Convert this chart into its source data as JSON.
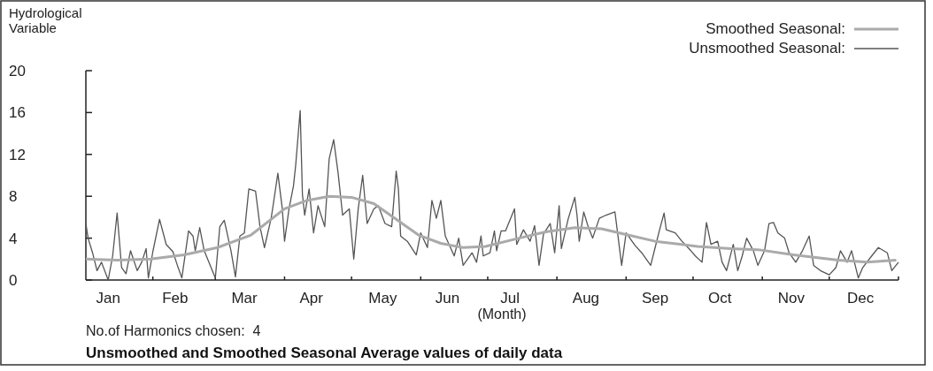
{
  "chart_data": {
    "type": "line",
    "title": "Unsmoothed and Smoothed Seasonal Average values of daily data",
    "xlabel": "(Month)",
    "ylabel": "Hydrological Variable",
    "annotations": [
      "No.of Harmonics chosen:  4"
    ],
    "legend": "top right",
    "xlim": [
      "--01-01",
      "--12-31"
    ],
    "ylim": [
      0,
      20
    ],
    "yticks": [
      0,
      4,
      8,
      12,
      16,
      20
    ],
    "xticks": [
      {
        "value": "--01-11",
        "label": "Jan"
      },
      {
        "value": "--02-10",
        "label": "Feb"
      },
      {
        "value": "--03-13",
        "label": "Mar"
      },
      {
        "value": "--04-12",
        "label": "Apr"
      },
      {
        "value": "--05-14",
        "label": "May"
      },
      {
        "value": "--06-12",
        "label": "Jun"
      },
      {
        "value": "--07-10",
        "label": "Jul"
      },
      {
        "value": "--08-13",
        "label": "Aug"
      },
      {
        "value": "--09-13",
        "label": "Sep"
      },
      {
        "value": "--10-12",
        "label": "Oct"
      },
      {
        "value": "--11-13",
        "label": "Nov"
      },
      {
        "value": "--12-14",
        "label": "Dec"
      },
      {
        "value": "--01-31",
        "label": null
      },
      {
        "value": "--02-28",
        "label": null
      },
      {
        "value": "--03-31",
        "label": null
      },
      {
        "value": "--04-30",
        "label": null
      },
      {
        "value": "--05-31",
        "label": null
      },
      {
        "value": "--06-30",
        "label": null
      },
      {
        "value": "--07-31",
        "label": null
      },
      {
        "value": "--08-31",
        "label": null
      },
      {
        "value": "--09-30",
        "label": null
      },
      {
        "value": "--10-31",
        "label": null
      },
      {
        "value": "--11-30",
        "label": null
      },
      {
        "value": "--12-31",
        "label": null
      }
    ],
    "series": [
      {
        "name": "Unsmoothed Seasonal:",
        "color": "#555555",
        "x": [
          "--01-01",
          "--01-02",
          "--01-04",
          "--01-06",
          "--01-08",
          "--01-11",
          "--01-13",
          "--01-15",
          "--01-17",
          "--01-19",
          "--01-21",
          "--01-24",
          "--01-26",
          "--01-28",
          "--01-29",
          "--01-31",
          "--02-03",
          "--02-06",
          "--02-09",
          "--02-11",
          "--02-13",
          "--02-16",
          "--02-18",
          "--02-19",
          "--02-21",
          "--02-23",
          "--02-28",
          "--03-02",
          "--03-04",
          "--03-07",
          "--03-09",
          "--03-11",
          "--03-13",
          "--03-15",
          "--03-18",
          "--03-20",
          "--03-22",
          "--03-25",
          "--03-26",
          "--03-28",
          "--03-30",
          "--03-31",
          "--04-02",
          "--04-04",
          "--04-05",
          "--04-07",
          "--04-08",
          "--04-09",
          "--04-11",
          "--04-13",
          "--04-15",
          "--04-18",
          "--04-20",
          "--04-22",
          "--04-24",
          "--04-26",
          "--04-29",
          "--05-01",
          "--05-03",
          "--05-05",
          "--05-07",
          "--05-10",
          "--05-12",
          "--05-15",
          "--05-18",
          "--05-20",
          "--05-21",
          "--05-22",
          "--05-25",
          "--05-29",
          "--05-31",
          "--06-03",
          "--06-05",
          "--06-07",
          "--06-09",
          "--06-11",
          "--06-15",
          "--06-17",
          "--06-19",
          "--06-23",
          "--06-25",
          "--06-27",
          "--06-28",
          "--07-01",
          "--07-03",
          "--07-04",
          "--07-06",
          "--07-08",
          "--07-12",
          "--07-13",
          "--07-16",
          "--07-19",
          "--07-21",
          "--07-23",
          "--07-25",
          "--07-28",
          "--07-30",
          "--08-01",
          "--08-02",
          "--08-05",
          "--08-08",
          "--08-09",
          "--08-10",
          "--08-12",
          "--08-14",
          "--08-16",
          "--08-19",
          "--08-22",
          "--08-26",
          "--08-29",
          "--08-31",
          "--09-04",
          "--09-07",
          "--09-11",
          "--09-13",
          "--09-15",
          "--09-17",
          "--09-18",
          "--09-22",
          "--09-25",
          "--09-29",
          "--10-01",
          "--10-04",
          "--10-06",
          "--10-08",
          "--10-11",
          "--10-13",
          "--10-15",
          "--10-18",
          "--10-20",
          "--10-22",
          "--10-24",
          "--10-27",
          "--10-29",
          "--11-01",
          "--11-03",
          "--11-05",
          "--11-07",
          "--11-10",
          "--11-12",
          "--11-15",
          "--11-18",
          "--11-21",
          "--11-23",
          "--11-26",
          "--11-30",
          "--12-03",
          "--12-05",
          "--12-08",
          "--12-10",
          "--12-13",
          "--12-15",
          "--12-19",
          "--12-22",
          "--12-26",
          "--12-28",
          "--12-31"
        ],
        "values": [
          5.4,
          4.0,
          2.6,
          0.9,
          1.7,
          0,
          2.3,
          6.4,
          1.2,
          0.6,
          2.8,
          0.9,
          1.7,
          3.0,
          0.2,
          2.7,
          5.8,
          3.4,
          2.7,
          1.4,
          0.2,
          4.7,
          4.2,
          2.8,
          5.0,
          2.8,
          0.2,
          5.1,
          5.7,
          2.8,
          0.3,
          4.2,
          4.5,
          8.7,
          8.5,
          5.1,
          3.1,
          5.9,
          7.3,
          10.2,
          6.8,
          3.7,
          6.8,
          9.0,
          11.0,
          16.2,
          8.2,
          6.2,
          8.7,
          4.5,
          7.1,
          5.1,
          11.6,
          13.4,
          10.2,
          6.2,
          6.8,
          2.0,
          6.8,
          10.0,
          5.4,
          6.8,
          7.1,
          5.4,
          5.1,
          10.4,
          8.7,
          4.2,
          3.7,
          2.4,
          4.5,
          3.1,
          7.6,
          5.9,
          7.6,
          4.2,
          2.3,
          4.0,
          1.4,
          2.6,
          1.7,
          4.2,
          2.3,
          2.6,
          4.7,
          2.8,
          4.7,
          4.7,
          6.8,
          3.4,
          4.8,
          3.7,
          5.2,
          1.4,
          4.4,
          5.4,
          2.6,
          7.1,
          3.0,
          5.8,
          7.9,
          6.2,
          3.7,
          6.5,
          5.1,
          4.0,
          5.9,
          6.2,
          6.5,
          1.4,
          4.5,
          3.3,
          2.6,
          1.4,
          3.1,
          4.8,
          6.4,
          4.8,
          4.5,
          3.7,
          2.8,
          2.3,
          1.7,
          5.5,
          3.4,
          3.7,
          1.7,
          0.9,
          3.4,
          0.9,
          2.3,
          4.0,
          2.8,
          1.4,
          2.8,
          5.4,
          5.5,
          4.5,
          4.0,
          2.6,
          1.7,
          2.8,
          4.2,
          1.4,
          0.9,
          0.5,
          1.2,
          2.8,
          1.7,
          2.8,
          0.2,
          1.2,
          2.3,
          3.1,
          2.6,
          0.9,
          1.7
        ]
      },
      {
        "name": "Smoothed Seasonal:",
        "color": "#aaaaaa",
        "x": [
          "--01-01",
          "--01-15",
          "--01-30",
          "--02-14",
          "--03-01",
          "--03-16",
          "--03-31",
          "--04-10",
          "--04-20",
          "--04-30",
          "--05-10",
          "--05-22",
          "--05-30",
          "--06-09",
          "--06-19",
          "--06-29",
          "--07-14",
          "--07-26",
          "--08-08",
          "--08-20",
          "--08-28",
          "--09-13",
          "--10-02",
          "--10-17",
          "--10-29",
          "--11-14",
          "--12-04",
          "--12-17",
          "--12-30"
        ],
        "values": [
          2.0,
          1.9,
          2.0,
          2.4,
          3.1,
          4.3,
          6.8,
          7.6,
          8.0,
          7.9,
          7.3,
          5.5,
          4.3,
          3.5,
          3.1,
          3.2,
          4.0,
          4.6,
          5.0,
          4.9,
          4.5,
          3.7,
          3.2,
          3.0,
          2.9,
          2.4,
          1.9,
          1.7,
          1.9
        ]
      }
    ]
  }
}
